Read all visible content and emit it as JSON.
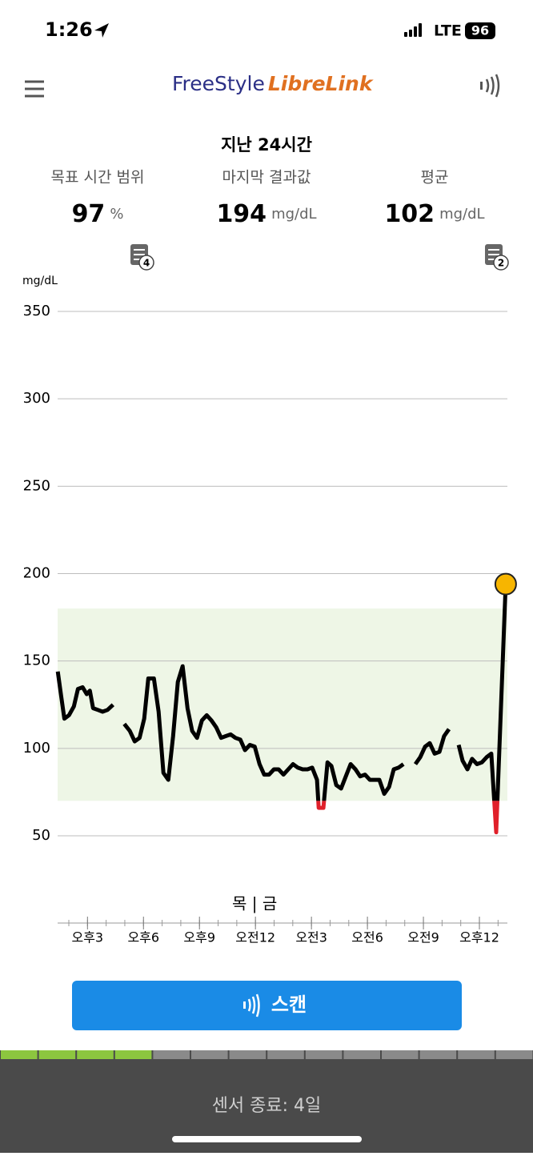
{
  "status_bar": {
    "time": "1:26",
    "network": "LTE",
    "battery": "96"
  },
  "header": {
    "logo_part1": "FreeStyle",
    "logo_part2": "LibreLink"
  },
  "summary": {
    "title": "지난 24시간",
    "stats": [
      {
        "label": "목표 시간 범위",
        "value": "97",
        "unit": "%"
      },
      {
        "label": "마지막 결과값",
        "value": "194",
        "unit": "mg/dL"
      },
      {
        "label": "평균",
        "value": "102",
        "unit": "mg/dL"
      }
    ],
    "note_counts": [
      "4",
      "2"
    ]
  },
  "chart_data": {
    "type": "line",
    "y_label": "mg/dL",
    "day_label": "목 | 금",
    "ylim": [
      50,
      350
    ],
    "yticks": [
      50,
      100,
      150,
      200,
      250,
      300,
      350
    ],
    "grid": true,
    "target_range": [
      70,
      180
    ],
    "target_color": "#eef6e6",
    "low_color": "#e0202a",
    "latest_color": "#f7b500",
    "xlim": [
      13.4,
      37.5
    ],
    "xticks": [
      {
        "value": 15,
        "label": "오후3"
      },
      {
        "value": 18,
        "label": "오후6"
      },
      {
        "value": 21,
        "label": "오후9"
      },
      {
        "value": 24,
        "label": "오전12"
      },
      {
        "value": 27,
        "label": "오전3"
      },
      {
        "value": 30,
        "label": "오전6"
      },
      {
        "value": 33,
        "label": "오전9"
      },
      {
        "value": 36,
        "label": "오후12"
      }
    ],
    "series": [
      {
        "color": "#000000",
        "x": [
          13.41,
          13.59,
          13.76,
          14.01,
          14.27,
          14.49,
          14.74,
          14.96,
          15.13,
          15.3,
          15.56,
          15.81,
          16.07,
          16.37,
          null,
          16.97,
          17.27,
          17.53,
          17.79,
          18.04,
          18.26,
          18.56,
          18.81,
          19.07,
          19.33,
          19.59,
          19.84,
          20.1,
          20.36,
          20.61,
          20.87,
          21.13,
          21.39,
          21.64,
          21.9,
          22.16,
          22.41,
          22.67,
          22.93,
          23.19,
          23.44,
          23.7,
          23.96,
          24.22,
          24.47,
          24.73,
          24.99,
          25.24,
          25.5,
          25.76,
          26.01,
          26.27,
          26.53,
          26.79,
          27.04,
          27.3,
          27.39,
          27.64,
          27.86,
          28.07,
          28.33,
          28.59,
          28.84,
          29.1,
          29.36,
          29.61,
          29.87,
          30.13,
          30.39,
          30.64,
          30.9,
          31.16,
          31.41,
          31.67,
          31.93,
          null,
          32.57,
          32.83,
          33.09,
          33.34,
          33.6,
          33.86,
          34.11,
          34.37,
          null,
          34.89,
          35.1,
          35.36,
          35.61,
          35.87,
          36.13,
          36.39,
          36.64,
          36.9,
          37.16,
          37.41
        ],
        "values": [
          144,
          130,
          117,
          119,
          124,
          134,
          135,
          131,
          133,
          123,
          122,
          121,
          122,
          125,
          null,
          114,
          110,
          104,
          106,
          117,
          140,
          140,
          121,
          86,
          82,
          107,
          138,
          147,
          123,
          110,
          106,
          116,
          119,
          116,
          112,
          106,
          107,
          108,
          106,
          105,
          99,
          102,
          101,
          91,
          85,
          85,
          88,
          88,
          85,
          88,
          91,
          89,
          88,
          88,
          89,
          82,
          66,
          66,
          92,
          90,
          79,
          77,
          84,
          91,
          88,
          84,
          85,
          82,
          82,
          82,
          74,
          78,
          88,
          89,
          91,
          null,
          91,
          95,
          101,
          103,
          97,
          98,
          107,
          111,
          null,
          102,
          93,
          88,
          94,
          91,
          92,
          95,
          97,
          52,
          125,
          194
        ]
      }
    ]
  },
  "actions": {
    "scan_button": "스캔"
  },
  "footer": {
    "sensor_status": "센서 종료: 4일"
  }
}
